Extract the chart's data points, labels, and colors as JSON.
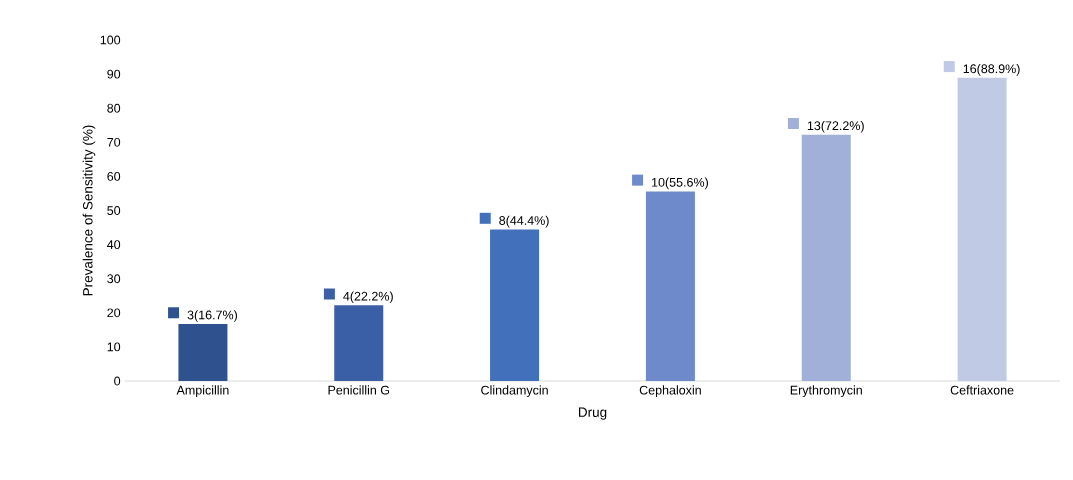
{
  "chart_data": {
    "type": "bar",
    "xlabel": "Drug",
    "ylabel": "Prevalence  of Sensitivity (%)",
    "categories": [
      "Ampicillin",
      "Penicillin G",
      "Clindamycin",
      "Cephaloxin",
      "Erythromycin",
      "Ceftriaxone"
    ],
    "values": [
      16.7,
      22.2,
      44.4,
      55.6,
      72.2,
      88.9
    ],
    "colors": [
      "#2f528f",
      "#3a5fa6",
      "#4270bb",
      "#6e8aca",
      "#a0b0d8",
      "#c0cae5"
    ],
    "value_labels": [
      "3(16.7%)",
      "4(22.2%)",
      "8(44.4%)",
      "10(55.6%)",
      "13(72.2%)",
      "16(88.9%)"
    ],
    "ylim": [
      0,
      100
    ],
    "yticks": [
      0,
      10,
      20,
      30,
      40,
      50,
      60,
      70,
      80,
      90,
      100
    ],
    "grid": false
  }
}
